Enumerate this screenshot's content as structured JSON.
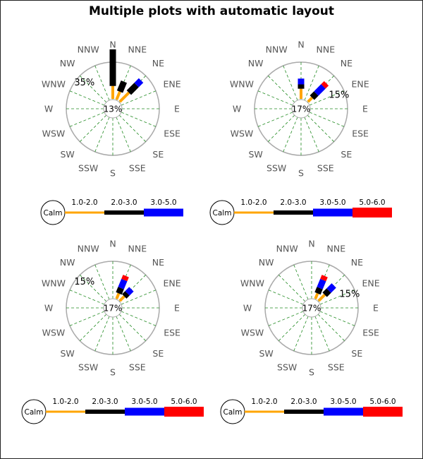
{
  "title": "Multiple plots with automatic layout",
  "colors": {
    "grid": "#aaaaaa",
    "spoke": "#228B22",
    "label": "#555555",
    "calm_fill": "#ffffff",
    "calm_stroke": "#000000"
  },
  "chart_data": [
    {
      "type": "windrose",
      "directions": [
        "N",
        "NNE",
        "NE",
        "ENE",
        "E",
        "ESE",
        "SE",
        "SSE",
        "S",
        "SSW",
        "SW",
        "WSW",
        "W",
        "WNW",
        "NW",
        "NNW"
      ],
      "calm": "13%",
      "scale_label": "35%",
      "scale_label_direction": "NW",
      "bins": [
        {
          "label": "1.0-2.0",
          "color": "#FFA500"
        },
        {
          "label": "2.0-3.0",
          "color": "#000000"
        },
        {
          "label": "3.0-5.0",
          "color": "#0000FF"
        }
      ],
      "legend_calm": "Calm",
      "data": [
        {
          "direction": "N",
          "values": [
            6,
            17,
            0
          ]
        },
        {
          "direction": "NNE",
          "values": [
            4,
            5,
            0
          ]
        },
        {
          "direction": "NE",
          "values": [
            6,
            5,
            3
          ]
        }
      ]
    },
    {
      "type": "windrose",
      "directions": [
        "N",
        "NNE",
        "NE",
        "ENE",
        "E",
        "ESE",
        "SE",
        "SSE",
        "S",
        "SSW",
        "SW",
        "WSW",
        "W",
        "WNW",
        "NW",
        "NNW"
      ],
      "calm": "17%",
      "scale_label": "15%",
      "scale_label_direction": "ENE",
      "bins": [
        {
          "label": "1.0-2.0",
          "color": "#FFA500"
        },
        {
          "label": "2.0-3.0",
          "color": "#000000"
        },
        {
          "label": "3.0-5.0",
          "color": "#0000FF"
        },
        {
          "label": "5.0-6.0",
          "color": "#FF0000"
        }
      ],
      "legend_calm": "Calm",
      "data": [
        {
          "direction": "N",
          "values": [
            3.5,
            1.5,
            2,
            0
          ]
        },
        {
          "direction": "NE",
          "values": [
            2,
            2,
            3.5,
            1.5
          ]
        }
      ]
    },
    {
      "type": "windrose",
      "directions": [
        "N",
        "NNE",
        "NE",
        "ENE",
        "E",
        "ESE",
        "SE",
        "SSE",
        "S",
        "SSW",
        "SW",
        "WSW",
        "W",
        "WNW",
        "NW",
        "NNW"
      ],
      "calm": "17%",
      "scale_label": "15%",
      "scale_label_direction": "NW",
      "bins": [
        {
          "label": "1.0-2.0",
          "color": "#FFA500"
        },
        {
          "label": "2.0-3.0",
          "color": "#000000"
        },
        {
          "label": "3.0-5.0",
          "color": "#0000FF"
        },
        {
          "label": "5.0-6.0",
          "color": "#FF0000"
        }
      ],
      "legend_calm": "Calm",
      "data": [
        {
          "direction": "NNE",
          "values": [
            2,
            2,
            3,
            1.5
          ]
        },
        {
          "direction": "NE",
          "values": [
            2.2,
            1.5,
            2,
            0
          ]
        }
      ]
    },
    {
      "type": "windrose",
      "directions": [
        "N",
        "NNE",
        "NE",
        "ENE",
        "E",
        "ESE",
        "SE",
        "SSE",
        "S",
        "SSW",
        "SW",
        "WSW",
        "W",
        "WNW",
        "NW",
        "NNW"
      ],
      "calm": "17%",
      "scale_label": "15%",
      "scale_label_direction": "ENE",
      "bins": [
        {
          "label": "1.0-2.0",
          "color": "#FFA500"
        },
        {
          "label": "2.0-3.0",
          "color": "#000000"
        },
        {
          "label": "3.0-5.0",
          "color": "#0000FF"
        },
        {
          "label": "5.0-6.0",
          "color": "#FF0000"
        }
      ],
      "legend_calm": "Calm",
      "data": [
        {
          "direction": "NNE",
          "values": [
            2,
            2,
            3,
            1.5
          ]
        },
        {
          "direction": "NE",
          "values": [
            3,
            2,
            2.5,
            0
          ]
        }
      ]
    }
  ]
}
